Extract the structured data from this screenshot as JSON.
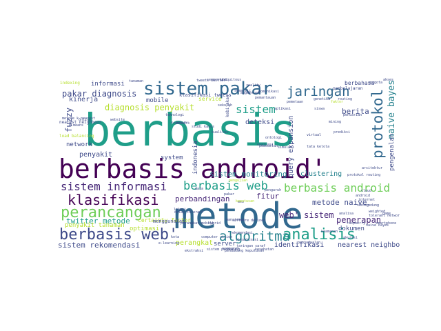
{
  "colors": {
    "background": "#ffffff",
    "palette": {
      "d": "#440154",
      "i": "#482878",
      "b": "#3e4a89",
      "s": "#31688e",
      "t": "#26828e",
      "g": "#1f9e89",
      "c": "#35b779",
      "l": "#6ece58",
      "y": "#b5de2b",
      "k": "#fde725"
    }
  },
  "cloud": {
    "words": [
      {
        "text": "berbasis",
        "color": "g"
      },
      {
        "text": "metode",
        "color": "s"
      },
      {
        "text": "berbasis android'",
        "color": "d"
      },
      {
        "text": "sistem pakar",
        "color": "s"
      },
      {
        "text": "jaringan",
        "color": "s"
      },
      {
        "text": "protokol",
        "color": "s"
      },
      {
        "text": "naive bayes",
        "color": "t"
      },
      {
        "text": "pakar diagnosis",
        "color": "b"
      },
      {
        "text": "diagnosis penyakit",
        "color": "y"
      },
      {
        "text": "sistem",
        "color": "g"
      },
      {
        "text": "berita",
        "color": "b"
      },
      {
        "text": "fuzzy",
        "color": "b"
      },
      {
        "text": "berbasis web",
        "color": "g"
      },
      {
        "text": "berbasis android",
        "color": "l"
      },
      {
        "text": "sistem informasi",
        "color": "i"
      },
      {
        "text": "klasifikasi",
        "color": "d"
      },
      {
        "text": "perancangan",
        "color": "l"
      },
      {
        "text": "berbasis web'",
        "color": "b"
      },
      {
        "text": "algoritma",
        "color": "t"
      },
      {
        "text": "analisis",
        "color": "g"
      },
      {
        "text": "web' sistem",
        "color": "i"
      },
      {
        "text": "penerapan",
        "color": "i"
      },
      {
        "text": "metode naive",
        "color": "b"
      },
      {
        "text": "perbandingan",
        "color": "i"
      },
      {
        "text": "fitur",
        "color": "i"
      },
      {
        "text": "sistem monitoring",
        "color": "t"
      },
      {
        "text": "query expansion",
        "color": "b"
      },
      {
        "text": "clustering",
        "color": "t"
      },
      {
        "text": "indonesia",
        "color": "b"
      },
      {
        "text": "deteksi",
        "color": "b"
      },
      {
        "text": "service",
        "color": "y"
      },
      {
        "text": "twitter metode",
        "color": "g"
      },
      {
        "text": "sistem rekomendasi",
        "color": "b"
      },
      {
        "text": "perangkat",
        "color": "y"
      },
      {
        "text": "server",
        "color": "b"
      },
      {
        "text": "identifikasi",
        "color": "b"
      },
      {
        "text": "nearest neighbor",
        "color": "b"
      },
      {
        "text": "dokumen",
        "color": "b"
      },
      {
        "text": "penyakit",
        "color": "b"
      },
      {
        "text": "informasi",
        "color": "b"
      },
      {
        "text": "kinerja",
        "color": "b"
      },
      {
        "text": "mobile",
        "color": "b"
      },
      {
        "text": "network",
        "color": "b"
      },
      {
        "text": "system",
        "color": "b"
      },
      {
        "text": "pengenalan",
        "color": "b"
      },
      {
        "text": "berbahasa",
        "color": "b"
      },
      {
        "text": "optimasi",
        "color": "y"
      },
      {
        "text": "penyakit tanaman",
        "color": "y"
      },
      {
        "text": "certainty factor",
        "color": "y"
      },
      {
        "text": "klasifikasi tweets",
        "color": "b"
      },
      {
        "text": "menggunakan",
        "color": "b"
      },
      {
        "text": "pembelajaran",
        "color": "b"
      },
      {
        "text": "load balancing",
        "color": "y"
      },
      {
        "text": "nearest neighbour",
        "color": "b"
      },
      {
        "text": "indexing",
        "color": "y"
      },
      {
        "text": "kebijakan",
        "color": "b"
      },
      {
        "text": "aplikasi",
        "color": "b"
      },
      {
        "text": "framework",
        "color": "b"
      },
      {
        "text": "faktor",
        "color": "y"
      },
      {
        "text": "tanaman",
        "color": "b"
      },
      {
        "text": "tweets twitter",
        "color": "b"
      },
      {
        "text": "delay tolerant",
        "color": "b"
      },
      {
        "text": "perangkat mobile",
        "color": "b"
      },
      {
        "text": "semantic",
        "color": "b"
      },
      {
        "text": "routing",
        "color": "b"
      },
      {
        "text": "genetika",
        "color": "b"
      },
      {
        "text": "software defined",
        "color": "b"
      },
      {
        "text": "augmented",
        "color": "b"
      },
      {
        "text": "reality",
        "color": "b"
      },
      {
        "text": "teknologi",
        "color": "b"
      },
      {
        "text": "kualitas",
        "color": "b"
      },
      {
        "text": "keamanan",
        "color": "b"
      },
      {
        "text": "cloud",
        "color": "b"
      },
      {
        "text": "internet",
        "color": "b"
      },
      {
        "text": "mining",
        "color": "b"
      },
      {
        "text": "ontologi",
        "color": "b"
      },
      {
        "text": "pencarian",
        "color": "b"
      },
      {
        "text": "smartphone",
        "color": "b"
      },
      {
        "text": "jaringan saraf",
        "color": "b"
      },
      {
        "text": "computer vision",
        "color": "b"
      },
      {
        "text": "pengujian",
        "color": "y"
      },
      {
        "text": "evaluasi",
        "color": "b"
      },
      {
        "text": "simulasi",
        "color": "b"
      },
      {
        "text": "analisa",
        "color": "b"
      },
      {
        "text": "protokol routing",
        "color": "b"
      },
      {
        "text": "raspberry",
        "color": "b"
      },
      {
        "text": "tolerant network",
        "color": "b"
      },
      {
        "text": "naive bayes",
        "color": "b"
      },
      {
        "text": "game",
        "color": "b"
      },
      {
        "text": "weighted",
        "color": "b"
      },
      {
        "text": "hybrid",
        "color": "b"
      },
      {
        "text": "pemodelan",
        "color": "b"
      },
      {
        "text": "android",
        "color": "b"
      },
      {
        "text": "virtual",
        "color": "b"
      },
      {
        "text": "sensor",
        "color": "b"
      },
      {
        "text": "anggota",
        "color": "b"
      },
      {
        "text": "pakar",
        "color": "b"
      },
      {
        "text": "data",
        "color": "b"
      },
      {
        "text": "web",
        "color": "b"
      },
      {
        "text": "kota",
        "color": "b"
      },
      {
        "text": "lokasi",
        "color": "b"
      },
      {
        "text": "sistem pendukung",
        "color": "b"
      },
      {
        "text": "pendukung keputusan",
        "color": "b"
      },
      {
        "text": "keputusan",
        "color": "y"
      },
      {
        "text": "komputer",
        "color": "b"
      },
      {
        "text": "rekomendasi",
        "color": "b"
      },
      {
        "text": "prediksi",
        "color": "b"
      },
      {
        "text": "siswa",
        "color": "b"
      },
      {
        "text": "sekolah",
        "color": "b"
      },
      {
        "text": "kesehatan",
        "color": "b"
      },
      {
        "text": "manajemen",
        "color": "b"
      },
      {
        "text": "pemantauan",
        "color": "b"
      },
      {
        "text": "komunikasi",
        "color": "b"
      },
      {
        "text": "penjadwalan",
        "color": "b"
      },
      {
        "text": "visualisasi",
        "color": "b"
      },
      {
        "text": "pemetaan",
        "color": "b"
      },
      {
        "text": "e-learning",
        "color": "b"
      },
      {
        "text": "ekstraksi",
        "color": "b"
      },
      {
        "text": "segmentasi",
        "color": "b"
      },
      {
        "text": "ubiquitous",
        "color": "b"
      },
      {
        "text": "arsitektur",
        "color": "b"
      },
      {
        "text": "gedung",
        "color": "b"
      },
      {
        "text": "tata kelola",
        "color": "b"
      },
      {
        "text": "kasus",
        "color": "b"
      },
      {
        "text": "studi kasus",
        "color": "b"
      },
      {
        "text": "metode k-nearest",
        "color": "b"
      },
      {
        "text": "k-means",
        "color": "b"
      },
      {
        "text": "website",
        "color": "b"
      },
      {
        "text": "online",
        "color": "b"
      },
      {
        "text": "pengaruh",
        "color": "b"
      },
      {
        "text": "akurasi",
        "color": "b"
      },
      {
        "text": "akses",
        "color": "b"
      }
    ]
  }
}
